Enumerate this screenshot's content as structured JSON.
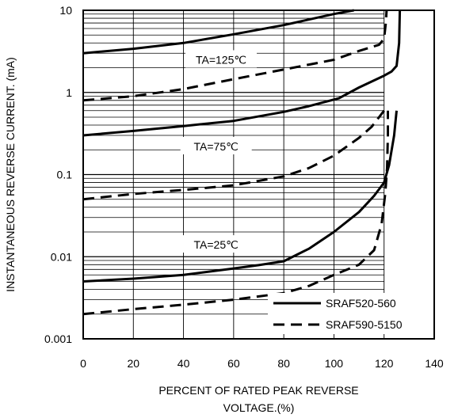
{
  "chart_data": {
    "type": "line",
    "title": "",
    "xlabel_line1": "PERCENT OF RATED PEAK REVERSE",
    "xlabel_line2": "VOLTAGE.(%)",
    "ylabel": "INSTANTANEOUS REVERSE CURRENT. (mA)",
    "xlim": [
      0,
      140
    ],
    "ylim": [
      0.001,
      10
    ],
    "y_scale": "log",
    "grid": true,
    "x_ticks": [
      {
        "value": 0,
        "label": "0"
      },
      {
        "value": 20,
        "label": "20"
      },
      {
        "value": 40,
        "label": "40"
      },
      {
        "value": 60,
        "label": "60"
      },
      {
        "value": 80,
        "label": "80"
      },
      {
        "value": 100,
        "label": "100"
      },
      {
        "value": 120,
        "label": "120"
      },
      {
        "value": 140,
        "label": "140"
      }
    ],
    "y_ticks": [
      {
        "value": 10,
        "label": "10"
      },
      {
        "value": 1,
        "label": "1"
      },
      {
        "value": 0.1,
        "label": "0.1"
      },
      {
        "value": 0.01,
        "label": "0.01"
      },
      {
        "value": 0.001,
        "label": "0.001"
      }
    ],
    "annotations": [
      {
        "text": "TA=125℃",
        "x": 55,
        "y": 2.5
      },
      {
        "text": "TA=75℃",
        "x": 53,
        "y": 0.22
      },
      {
        "text": "TA=25℃",
        "x": 53,
        "y": 0.014
      }
    ],
    "legend": {
      "placement": "bottom-right",
      "entries": [
        {
          "label": "SRAF520-560",
          "style": "solid"
        },
        {
          "label": "SRAF590-5150",
          "style": "dashed"
        }
      ]
    },
    "series": [
      {
        "group": "SRAF520-560",
        "style": "solid",
        "x": [
          0,
          20,
          40,
          60,
          80,
          100,
          108
        ],
        "y": [
          3.0,
          3.4,
          4.0,
          5.1,
          6.6,
          9.0,
          10
        ]
      },
      {
        "group": "SRAF590-5150",
        "style": "dashed",
        "x": [
          0,
          20,
          40,
          60,
          80,
          100,
          110,
          118,
          120,
          120.7,
          121
        ],
        "y": [
          0.8,
          0.9,
          1.1,
          1.45,
          1.9,
          2.5,
          3.2,
          3.8,
          4.5,
          7,
          10
        ]
      },
      {
        "group": "SRAF520-560",
        "style": "solid",
        "x": [
          0,
          20,
          40,
          60,
          80,
          90,
          102,
          110,
          120,
          123,
          125,
          126,
          126.3
        ],
        "y": [
          0.3,
          0.34,
          0.39,
          0.45,
          0.58,
          0.68,
          0.85,
          1.15,
          1.6,
          1.8,
          2.1,
          4,
          10
        ]
      },
      {
        "group": "SRAF590-5150",
        "style": "dashed",
        "x": [
          0,
          20,
          40,
          60,
          80,
          90,
          100,
          110,
          115,
          118,
          120
        ],
        "y": [
          0.05,
          0.058,
          0.065,
          0.074,
          0.095,
          0.12,
          0.17,
          0.28,
          0.38,
          0.5,
          0.6
        ]
      },
      {
        "group": "SRAF520-560",
        "style": "solid",
        "x": [
          0,
          20,
          40,
          60,
          70,
          80,
          90,
          100,
          110,
          116,
          120,
          122,
          124,
          125
        ],
        "y": [
          0.005,
          0.0054,
          0.006,
          0.0072,
          0.0079,
          0.0088,
          0.0125,
          0.02,
          0.035,
          0.055,
          0.08,
          0.13,
          0.3,
          0.6
        ]
      },
      {
        "group": "SRAF590-5150",
        "style": "dashed",
        "x": [
          0,
          20,
          40,
          60,
          80,
          90,
          100,
          110,
          116,
          119,
          120.5,
          121.2,
          121.5,
          121.5
        ],
        "y": [
          0.002,
          0.0023,
          0.0026,
          0.003,
          0.0036,
          0.0044,
          0.006,
          0.008,
          0.012,
          0.025,
          0.06,
          0.12,
          0.3,
          0.6
        ]
      }
    ]
  }
}
